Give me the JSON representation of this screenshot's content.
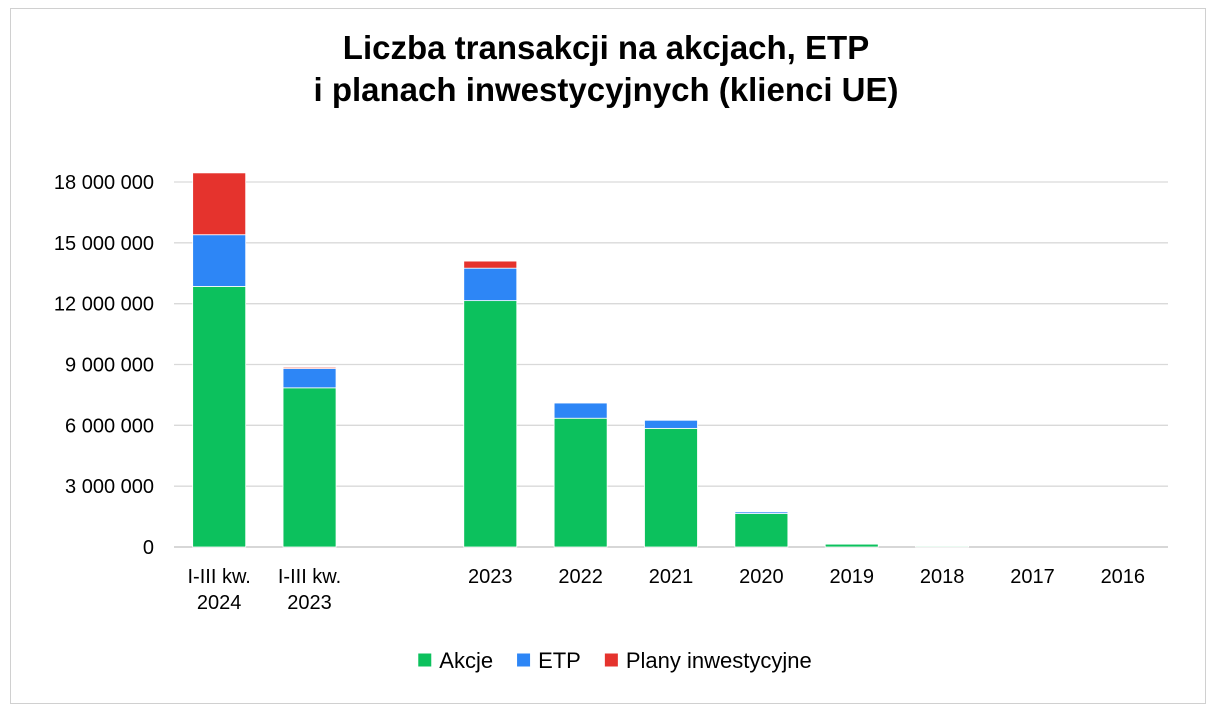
{
  "chart_data": {
    "type": "bar",
    "stacked": true,
    "title": "Liczba transakcji na akcjach, ETP i planach inwestycyjnych (klienci UE)",
    "title_lines": [
      "Liczba transakcji na akcjach, ETP",
      "i planach inwestycyjnych (klienci UE)"
    ],
    "categories": [
      [
        "I-III kw.",
        "2024"
      ],
      [
        "I-III kw.",
        "2023"
      ],
      [
        ""
      ],
      [
        "2023"
      ],
      [
        "2022"
      ],
      [
        "2021"
      ],
      [
        "2020"
      ],
      [
        "2019"
      ],
      [
        "2018"
      ],
      [
        "2017"
      ],
      [
        "2016"
      ]
    ],
    "series": [
      {
        "name": "Akcje",
        "color": "#0cc15d",
        "values": [
          12850000,
          7850000,
          0,
          12150000,
          6350000,
          5850000,
          1650000,
          150000,
          50000,
          0,
          0
        ]
      },
      {
        "name": "ETP",
        "color": "#2d86f6",
        "values": [
          2550000,
          950000,
          0,
          1600000,
          750000,
          400000,
          80000,
          30000,
          30000,
          0,
          0
        ]
      },
      {
        "name": "Plany inwestycyjne",
        "color": "#e5332d",
        "values": [
          3050000,
          60000,
          0,
          350000,
          0,
          0,
          0,
          0,
          0,
          0,
          0
        ]
      }
    ],
    "yticks": [
      "0",
      "3 000 000",
      "6 000 000",
      "9 000 000",
      "12 000 000",
      "15 000 000",
      "18 000 000"
    ],
    "ylim": [
      0,
      18000000
    ],
    "grid": true,
    "legend_position": "bottom"
  }
}
